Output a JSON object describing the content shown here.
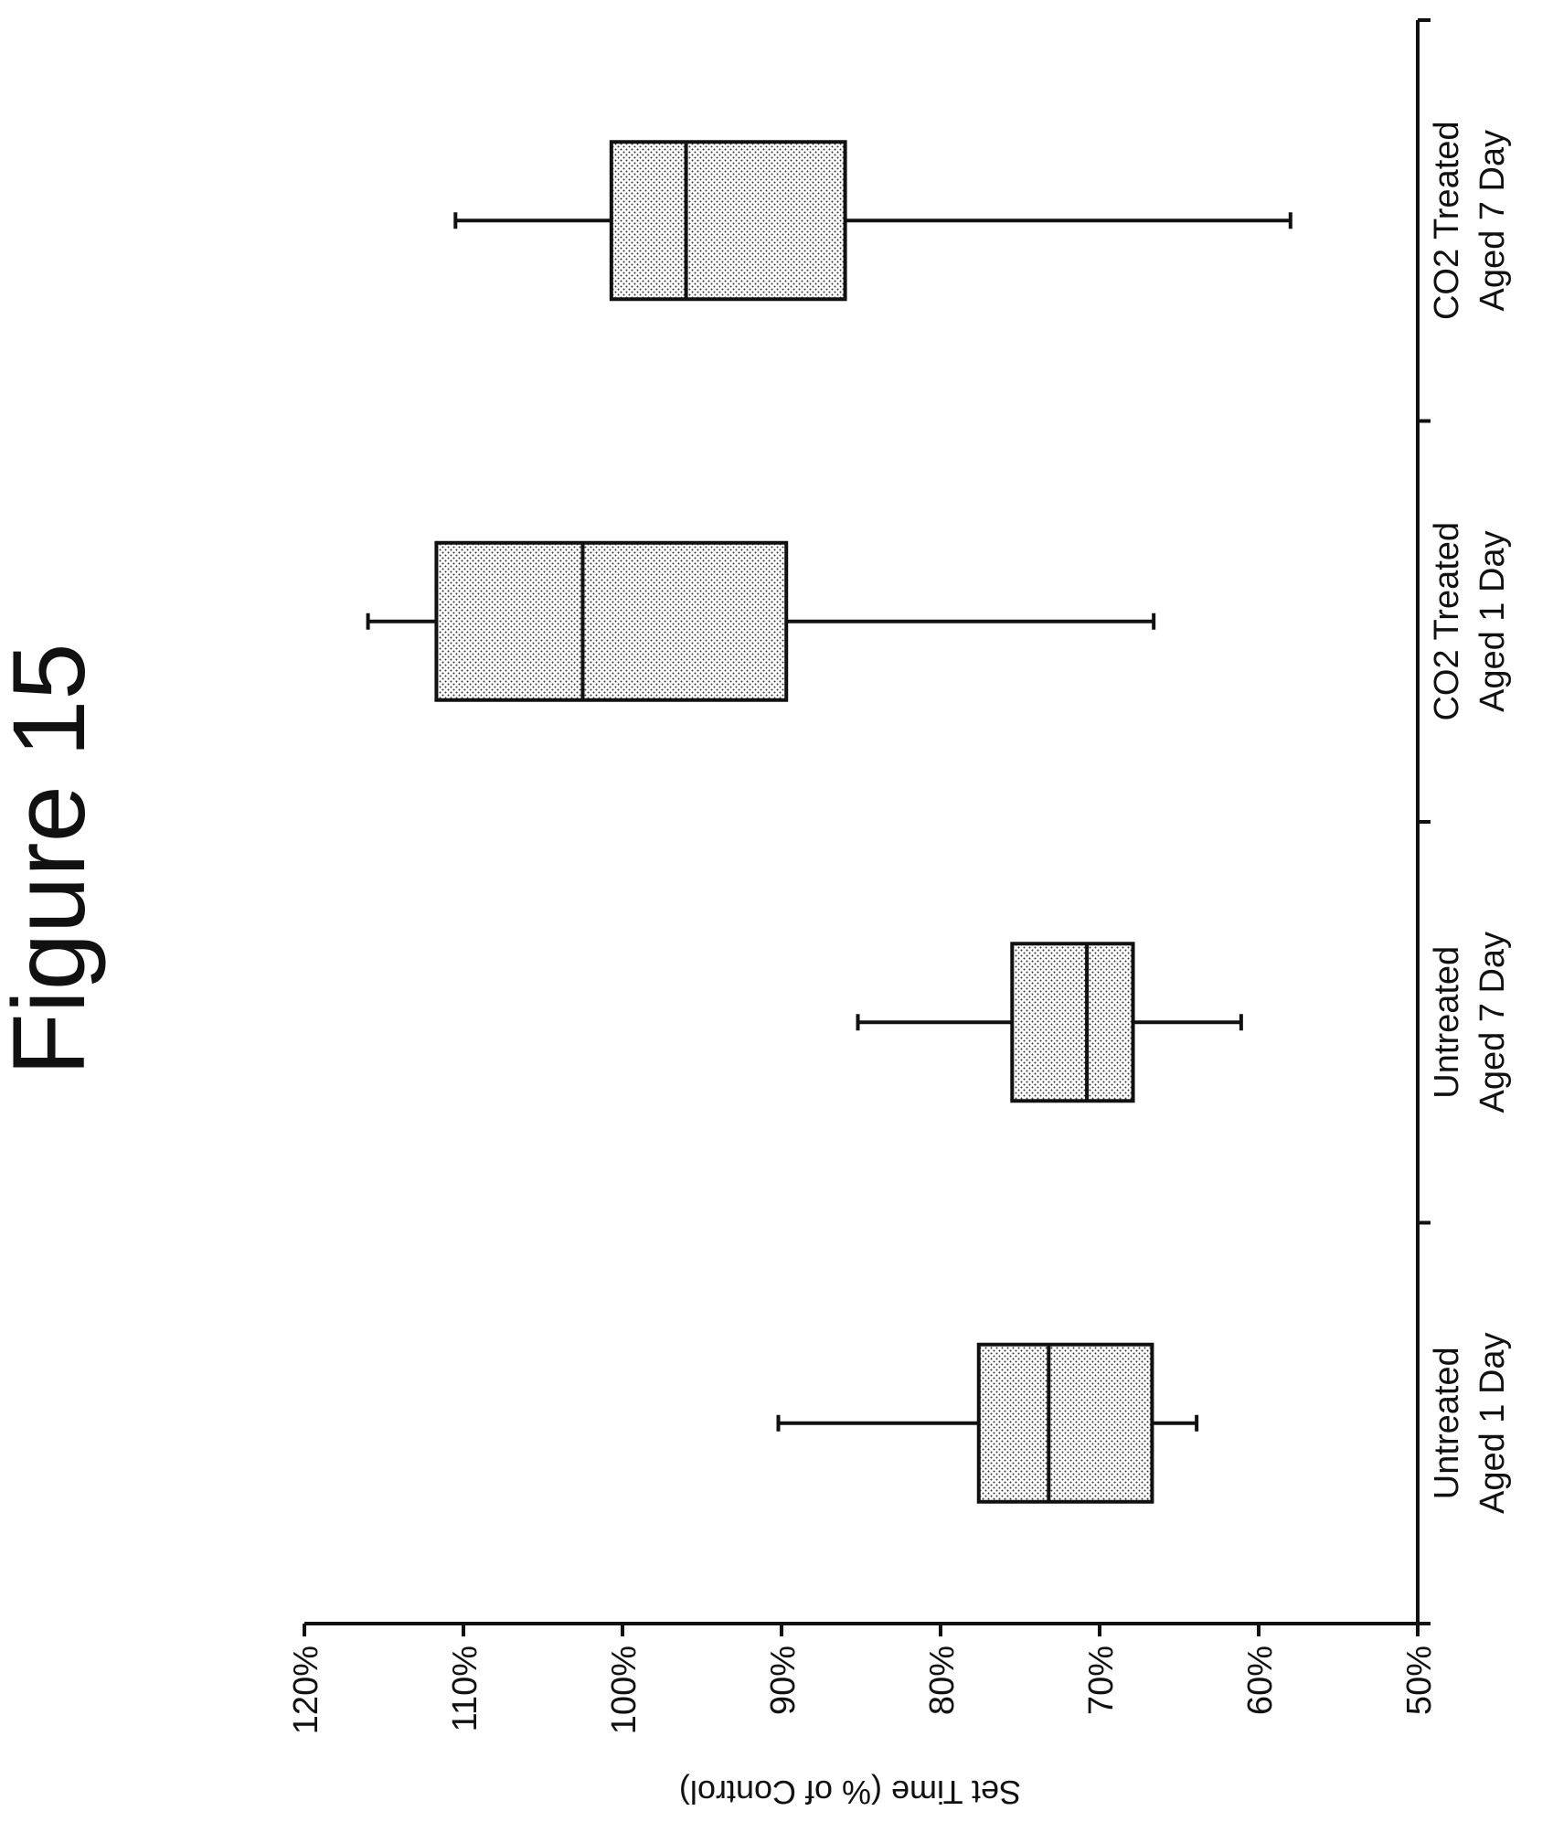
{
  "figure_title": "Figure 15",
  "chart_data": {
    "type": "box",
    "orientation": "rotated",
    "ylabel": "Set Time (% of Control)",
    "xlabel": "",
    "ylim": [
      0.5,
      1.2
    ],
    "yticks": [
      0.5,
      0.6,
      0.7,
      0.8,
      0.9,
      1.0,
      1.1,
      1.2
    ],
    "ytick_labels": [
      "50%",
      "60%",
      "70%",
      "80%",
      "90%",
      "100%",
      "110%",
      "120%"
    ],
    "categories": [
      [
        "Untreated",
        "Aged 1 Day"
      ],
      [
        "Untreated",
        "Aged 7 Day"
      ],
      [
        "CO2 Treated",
        "Aged 1 Day"
      ],
      [
        "CO2 Treated",
        "Aged 7 Day"
      ]
    ],
    "boxes": [
      {
        "min": 0.639,
        "q1": 0.667,
        "median": 0.732,
        "q3": 0.776,
        "max": 0.902
      },
      {
        "min": 0.611,
        "q1": 0.679,
        "median": 0.708,
        "q3": 0.755,
        "max": 0.852
      },
      {
        "min": 0.666,
        "q1": 0.897,
        "median": 1.025,
        "q3": 1.117,
        "max": 1.16
      },
      {
        "min": 0.58,
        "q1": 0.86,
        "median": 0.96,
        "q3": 1.007,
        "max": 1.105
      }
    ],
    "grid": false,
    "fill_pattern": "dotted"
  }
}
